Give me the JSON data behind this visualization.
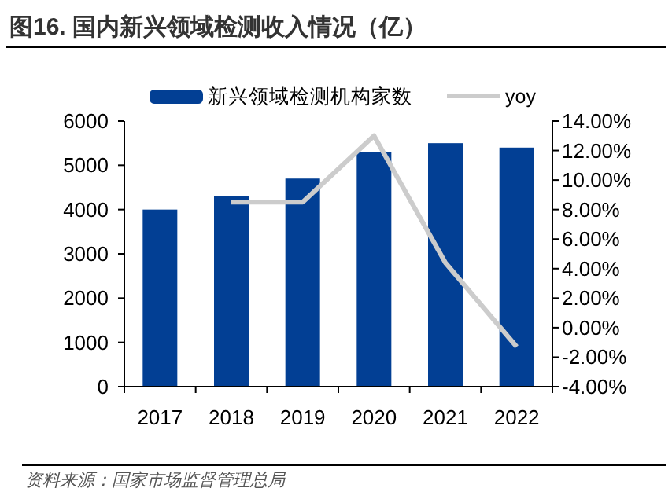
{
  "chart_data": {
    "type": "bar",
    "title": "图16. 国内新兴领域检测收入情况（亿）",
    "categories": [
      "2017",
      "2018",
      "2019",
      "2020",
      "2021",
      "2022"
    ],
    "series": [
      {
        "name": "新兴领域检测机构家数",
        "color": "#023f94",
        "values": [
          4000,
          4300,
          4700,
          5300,
          5500,
          5400
        ]
      },
      {
        "name": "yoy",
        "type": "line",
        "axis": "y2",
        "color": "#cccccc",
        "values": [
          null,
          8.5,
          8.5,
          13.0,
          4.4,
          -1.3
        ]
      }
    ],
    "ylim": [
      0,
      6000
    ],
    "yticks": [
      0,
      1000,
      2000,
      3000,
      4000,
      5000,
      6000
    ],
    "y2lim": [
      -4,
      14
    ],
    "y2ticks": [
      {
        "value": -4,
        "label": "-4.00%"
      },
      {
        "value": -2,
        "label": "-2.00%"
      },
      {
        "value": 0,
        "label": "0.00%"
      },
      {
        "value": 2,
        "label": "2.00%"
      },
      {
        "value": 4,
        "label": "4.00%"
      },
      {
        "value": 6,
        "label": "6.00%"
      },
      {
        "value": 8,
        "label": "8.00%"
      },
      {
        "value": 10,
        "label": "10.00%"
      },
      {
        "value": 12,
        "label": "12.00%"
      },
      {
        "value": 14,
        "label": "14.00%"
      }
    ],
    "legend": "top",
    "grid": false,
    "annotations": [
      "资料来源：国家市场监督管理总局"
    ]
  }
}
